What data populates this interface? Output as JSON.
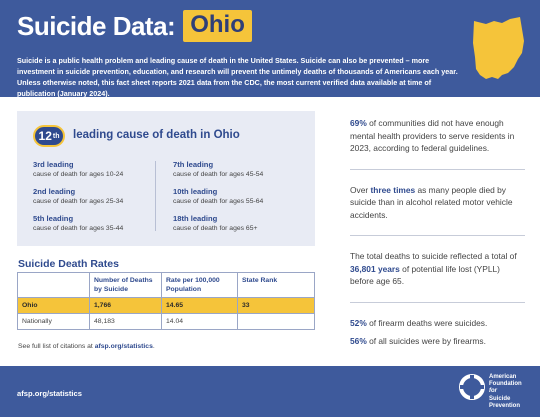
{
  "header": {
    "title": "Suicide Data:",
    "state": "Ohio",
    "intro": "Suicide is a public health problem and leading cause of death in the United States. Suicide can also be prevented – more investment in suicide prevention, education, and research will prevent the untimely deaths of thousands of Americans each year. Unless otherwise noted, this fact sheet reports 2021 data from the CDC, the most current verified data available at time of publication (January 2024).",
    "state_shape_icon": "ohio-map-icon",
    "colors": {
      "header_bg": "#3e5a9c",
      "accent_yellow": "#f5c43a"
    }
  },
  "leading": {
    "rank_number": "12",
    "rank_suffix": "th",
    "title": "leading cause of death in Ohio",
    "left_items": [
      {
        "rank": "3rd leading",
        "desc": "cause of death for ages 10-24"
      },
      {
        "rank": "2nd leading",
        "desc": "cause of death for ages 25-34"
      },
      {
        "rank": "5th leading",
        "desc": "cause of death for ages 35-44"
      }
    ],
    "right_items": [
      {
        "rank": "7th leading",
        "desc": "cause of death for ages 45-54"
      },
      {
        "rank": "10th leading",
        "desc": "cause of death for ages 55-64"
      },
      {
        "rank": "18th leading",
        "desc": "cause of death for ages 65+"
      }
    ]
  },
  "rates": {
    "title": "Suicide Death Rates",
    "headers": [
      "",
      "Number of Deaths by Suicide",
      "Rate per 100,000 Population",
      "State Rank"
    ],
    "rows": [
      {
        "label": "Ohio",
        "deaths": "1,766",
        "rate": "14.65",
        "rank": "33"
      },
      {
        "label": "Nationally",
        "deaths": "48,183",
        "rate": "14.04",
        "rank": ""
      }
    ]
  },
  "citation": {
    "prefix": "See full list of citations at ",
    "link": "afsp.org/statistics",
    "suffix": "."
  },
  "facts": [
    {
      "highlight": "69%",
      "text": " of communities did not have enough mental health providers to serve residents in 2023, according to federal guidelines."
    },
    {
      "pre": "Over ",
      "highlight": "three times",
      "text": " as many people died by suicide than in alcohol related motor vehicle accidents."
    },
    {
      "pre": "The total deaths to suicide reflected a total of ",
      "highlight": "36,801 years",
      "text": " of potential life lost (YPLL) before age 65."
    }
  ],
  "firearm_facts": [
    {
      "highlight": "52%",
      "text": " of firearm deaths were suicides."
    },
    {
      "highlight": "56%",
      "text": " of all suicides were by firearms."
    }
  ],
  "footer": {
    "url": "afsp.org/statistics",
    "org_line1": "American",
    "org_line2": "Foundation",
    "org_line3": "for",
    "org_line4": "Suicide",
    "org_line5": "Prevention",
    "logo_icon": "lifebuoy-logo-icon"
  }
}
